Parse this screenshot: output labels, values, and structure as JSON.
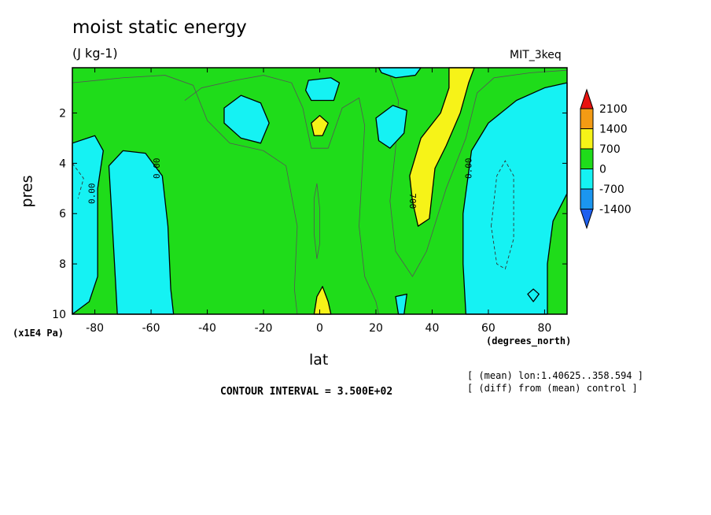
{
  "chart_data": {
    "type": "contour",
    "title": "moist static energy",
    "units": "(J kg-1)",
    "model_label": "MIT_3keq",
    "xlabel": "lat",
    "x_units": "(degrees_north)",
    "ylabel": "pres",
    "y_units": "(x1E4 Pa)",
    "xlim": [
      -88,
      88
    ],
    "ylim": [
      0.2,
      10
    ],
    "y_inverted": true,
    "x_ticks": [
      -80,
      -60,
      -40,
      -20,
      0,
      20,
      40,
      60,
      80
    ],
    "x_tick_labels": [
      "-80",
      "-60",
      "-40",
      "-20",
      "0",
      "20",
      "40",
      "60",
      "80"
    ],
    "y_ticks": [
      2,
      4,
      6,
      8,
      10
    ],
    "y_tick_labels": [
      "2",
      "4",
      "6",
      "8",
      "10"
    ],
    "contour_interval_text": "CONTOUR INTERVAL = 3.500E+02",
    "contour_labels": [
      {
        "text": "0.00",
        "lat": -80,
        "pres": 5.2
      },
      {
        "text": "0.00",
        "lat": -57,
        "pres": 4.2
      },
      {
        "text": "700",
        "lat": 32,
        "pres": 5.5
      },
      {
        "text": "0.00",
        "lat": 54,
        "pres": 4.2
      }
    ],
    "levels": [
      {
        "label": "2100",
        "color": "#e8130f"
      },
      {
        "label": "1400",
        "color": "#f39b14"
      },
      {
        "label": "700",
        "color": "#f6f318"
      },
      {
        "label": "0",
        "color": "#1fdc1a"
      },
      {
        "label": "-700",
        "color": "#15f2f3"
      },
      {
        "label": "-1400",
        "color": "#1b96ef"
      }
    ],
    "color_top_arrow": "#e8130f",
    "color_bottom_arrow": "#1d60ee",
    "regions": [
      {
        "name": "neg-sh-edge",
        "color": "#15f2f3",
        "points": [
          [
            -88,
            3.2
          ],
          [
            -80,
            2.9
          ],
          [
            -77,
            3.5
          ],
          [
            -79,
            5
          ],
          [
            -79,
            8.5
          ],
          [
            -82,
            9.5
          ],
          [
            -88,
            10
          ]
        ]
      },
      {
        "name": "neg-sh-main",
        "color": "#15f2f3",
        "points": [
          [
            -75,
            4.1
          ],
          [
            -70,
            3.5
          ],
          [
            -62,
            3.6
          ],
          [
            -56,
            4.5
          ],
          [
            -54,
            6.5
          ],
          [
            -53,
            9
          ],
          [
            -52,
            10
          ],
          [
            -72,
            10
          ],
          [
            -73,
            8
          ],
          [
            -74,
            6
          ]
        ]
      },
      {
        "name": "neg-nh-main",
        "color": "#15f2f3",
        "points": [
          [
            52,
            10
          ],
          [
            51,
            8
          ],
          [
            51,
            6
          ],
          [
            54,
            3.5
          ],
          [
            60,
            2.4
          ],
          [
            70,
            1.5
          ],
          [
            80,
            1.0
          ],
          [
            88,
            0.8
          ],
          [
            88,
            5.2
          ],
          [
            83,
            6.3
          ],
          [
            81,
            8
          ],
          [
            81,
            10
          ]
        ]
      },
      {
        "name": "neg-top-center",
        "color": "#15f2f3",
        "points": [
          [
            -4,
            0.7
          ],
          [
            4,
            0.6
          ],
          [
            7,
            0.8
          ],
          [
            5,
            1.5
          ],
          [
            -3,
            1.5
          ],
          [
            -5,
            1.1
          ]
        ]
      },
      {
        "name": "neg-top-right",
        "color": "#15f2f3",
        "points": [
          [
            21,
            0.2
          ],
          [
            36,
            0.2
          ],
          [
            34,
            0.5
          ],
          [
            27,
            0.6
          ],
          [
            22,
            0.4
          ]
        ]
      },
      {
        "name": "neg-blob-left",
        "color": "#15f2f3",
        "points": [
          [
            -34,
            1.8
          ],
          [
            -28,
            1.3
          ],
          [
            -21,
            1.6
          ],
          [
            -18,
            2.4
          ],
          [
            -21,
            3.2
          ],
          [
            -28,
            3.0
          ],
          [
            -34,
            2.4
          ]
        ]
      },
      {
        "name": "neg-blob-right",
        "color": "#15f2f3",
        "points": [
          [
            20,
            2.2
          ],
          [
            26,
            1.7
          ],
          [
            31,
            1.9
          ],
          [
            30,
            2.8
          ],
          [
            25,
            3.4
          ],
          [
            21,
            3.1
          ]
        ]
      },
      {
        "name": "neg-bottom-mid",
        "color": "#15f2f3",
        "points": [
          [
            27,
            9.3
          ],
          [
            31,
            9.2
          ],
          [
            30,
            10
          ],
          [
            28,
            10
          ]
        ]
      },
      {
        "name": "neg-small-oval",
        "color": "#15f2f3",
        "points": [
          [
            74,
            9.2
          ],
          [
            76,
            9.0
          ],
          [
            78,
            9.2
          ],
          [
            76,
            9.5
          ]
        ]
      },
      {
        "name": "pos-yellow-tongue",
        "color": "#f6f318",
        "points": [
          [
            46,
            0.2
          ],
          [
            55,
            0.2
          ],
          [
            53,
            0.8
          ],
          [
            50,
            2.0
          ],
          [
            45,
            3.3
          ],
          [
            41,
            4.2
          ],
          [
            39,
            6.2
          ],
          [
            35,
            6.5
          ],
          [
            33,
            5.5
          ],
          [
            32,
            4.5
          ],
          [
            36,
            3.0
          ],
          [
            43,
            2.0
          ],
          [
            46,
            1.0
          ]
        ]
      },
      {
        "name": "pos-yellow-top-center",
        "color": "#f6f318",
        "points": [
          [
            -3,
            2.4
          ],
          [
            0,
            2.1
          ],
          [
            3,
            2.4
          ],
          [
            1,
            2.9
          ],
          [
            -2,
            2.9
          ]
        ]
      },
      {
        "name": "pos-yellow-bottom-center",
        "color": "#f6f318",
        "points": [
          [
            -2,
            10
          ],
          [
            -1,
            9.3
          ],
          [
            1,
            8.9
          ],
          [
            3,
            9.5
          ],
          [
            4,
            10
          ]
        ]
      }
    ],
    "annotations": [
      "[ (mean) lon:1.40625..358.594 ]",
      "[ (diff) from (mean) control ]"
    ]
  }
}
